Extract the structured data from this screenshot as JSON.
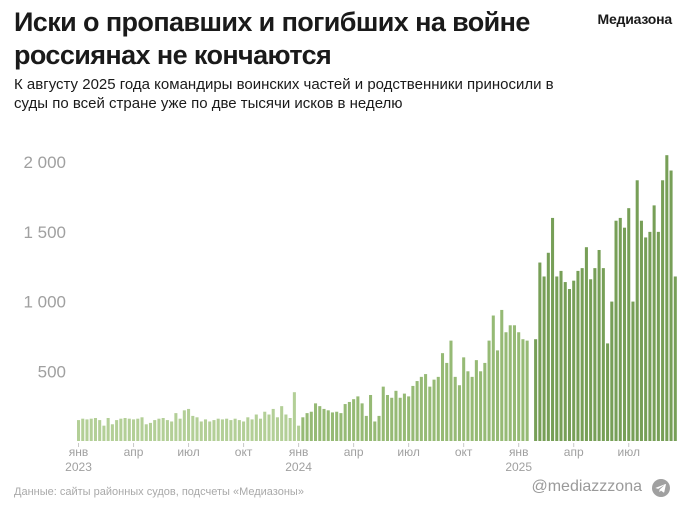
{
  "header": {
    "title": "Иски о пропавших и погибших на войне россиянах не кончаются",
    "subtitle": "К августу 2025 года командиры воинских частей и родственники приносили в суды по всей стране уже по две тысячи исков в неделю",
    "brand": "Медиазона"
  },
  "footer": {
    "source": "Данные: сайты районных судов, подсчеты «Медиазоны»",
    "handle": "@mediazzzona",
    "icon": "telegram-icon"
  },
  "colors": {
    "bar_2023": "#b3cf97",
    "bar_2024": "#96ba75",
    "bar_2025": "#779f57",
    "axis_text": "#a0a0a0"
  },
  "chart_data": {
    "type": "bar",
    "x_unit": "week",
    "y_ticks": [
      500,
      1000,
      1500,
      2000
    ],
    "y_tick_labels": [
      "500",
      "1 000",
      "1 500",
      "2 000"
    ],
    "ylim": [
      0,
      2080
    ],
    "grid": false,
    "x_tick_labels": [
      {
        "label": "янв",
        "year": "2023",
        "week": 0
      },
      {
        "label": "апр",
        "week": 13
      },
      {
        "label": "июл",
        "week": 26
      },
      {
        "label": "окт",
        "week": 39
      },
      {
        "label": "янв",
        "year": "2024",
        "week": 52
      },
      {
        "label": "апр",
        "week": 65
      },
      {
        "label": "июл",
        "week": 78
      },
      {
        "label": "окт",
        "week": 91
      },
      {
        "label": "янв",
        "year": "2025",
        "week": 104
      },
      {
        "label": "апр",
        "week": 117
      },
      {
        "label": "июл",
        "week": 130
      }
    ],
    "series": [
      {
        "period": "2023",
        "start_week": 0,
        "values": [
          150,
          160,
          155,
          160,
          165,
          150,
          110,
          165,
          120,
          150,
          160,
          165,
          160,
          155,
          160,
          170,
          120,
          130,
          150,
          160,
          165,
          150,
          140,
          200,
          160,
          220,
          230,
          180,
          170,
          140,
          155,
          140,
          150,
          160,
          155,
          160,
          150,
          160,
          150,
          140,
          170,
          155,
          190,
          160,
          210,
          190,
          230,
          170,
          250,
          190,
          165,
          350,
          110
        ]
      },
      {
        "period": "2024",
        "start_week": 53,
        "values": [
          170,
          200,
          210,
          270,
          250,
          230,
          220,
          205,
          210,
          200,
          265,
          280,
          300,
          320,
          270,
          180,
          330,
          140,
          180,
          390,
          330,
          310,
          360,
          310,
          340,
          320,
          395,
          430,
          460,
          480,
          390,
          440,
          460,
          630,
          560,
          720,
          460,
          400,
          600,
          500,
          460,
          580,
          500,
          560,
          720,
          900,
          650,
          940,
          780,
          830,
          830,
          780,
          730,
          720
        ]
      },
      {
        "period": "2025",
        "start_week": 108,
        "values": [
          730,
          1280,
          1180,
          1350,
          1600,
          1180,
          1220,
          1140,
          1090,
          1150,
          1220,
          1240,
          1390,
          1160,
          1240,
          1370,
          1240,
          700,
          1000,
          1580,
          1600,
          1530,
          1670,
          1000,
          1870,
          1580,
          1460,
          1500,
          1690,
          1500,
          1870,
          2050,
          1940,
          1180
        ]
      }
    ]
  }
}
